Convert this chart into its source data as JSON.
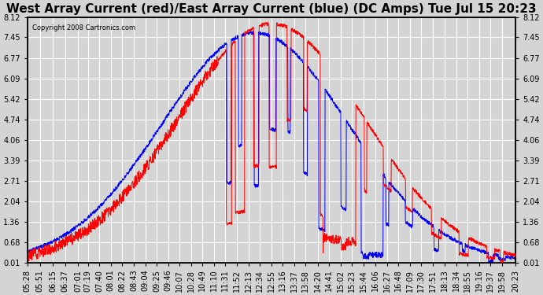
{
  "title": "West Array Current (red)/East Array Current (blue) (DC Amps) Tue Jul 15 20:23",
  "copyright": "Copyright 2008 Cartronics.com",
  "background_color": "#d4d4d4",
  "plot_bg_color": "#d4d4d4",
  "grid_color": "white",
  "west_color": "red",
  "east_color": "blue",
  "ylim": [
    0.01,
    8.12
  ],
  "yticks": [
    8.12,
    7.45,
    6.77,
    6.09,
    5.42,
    4.74,
    4.06,
    3.39,
    2.71,
    2.04,
    1.36,
    0.68,
    0.01
  ],
  "xtick_labels": [
    "05:28",
    "05:51",
    "06:15",
    "06:37",
    "07:01",
    "07:19",
    "07:40",
    "08:01",
    "08:22",
    "08:43",
    "09:04",
    "09:25",
    "09:46",
    "10:07",
    "10:28",
    "10:49",
    "11:10",
    "11:31",
    "11:52",
    "12:13",
    "12:34",
    "12:55",
    "13:16",
    "13:37",
    "13:58",
    "14:20",
    "14:41",
    "15:02",
    "15:23",
    "15:44",
    "16:06",
    "16:27",
    "16:48",
    "17:09",
    "17:30",
    "17:51",
    "18:13",
    "18:34",
    "18:55",
    "19:16",
    "19:37",
    "19:58",
    "20:23"
  ],
  "title_fontsize": 11,
  "tick_fontsize": 7,
  "ylabel_fontsize": 8
}
